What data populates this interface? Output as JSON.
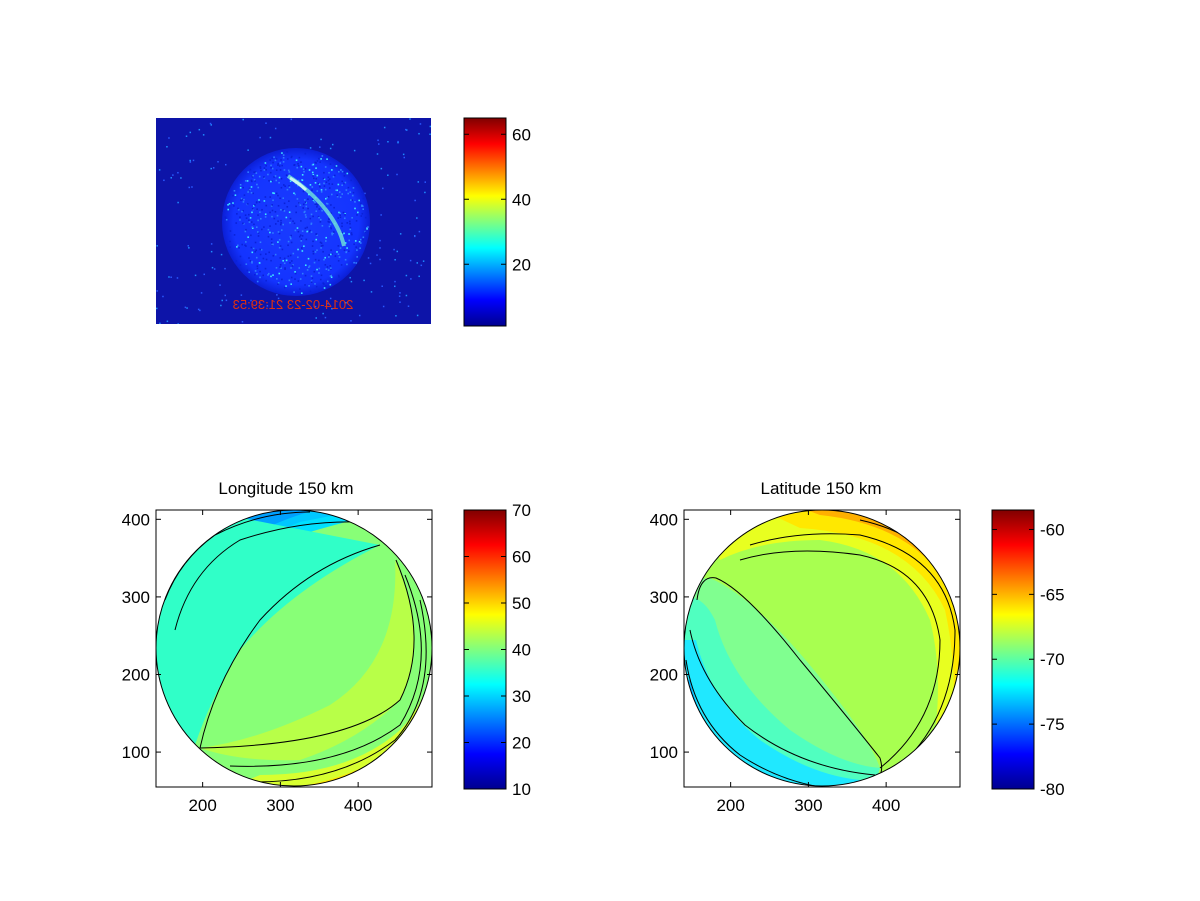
{
  "figure": {
    "background": "#ffffff"
  },
  "chart_data": [
    {
      "type": "heatmap",
      "title": "",
      "description_text": "2014-02-23 21:39:53 (printed mirrored inside image)",
      "image_text": "2014-02-23 21:39:53",
      "colorbar": {
        "ticks": [
          20,
          40,
          60
        ],
        "range": [
          1,
          65
        ]
      },
      "axes_visible": false
    },
    {
      "type": "heatmap",
      "title": "Longitude 150 km",
      "xlabel": "",
      "ylabel": "",
      "xticks": [
        200,
        300,
        400
      ],
      "yticks": [
        100,
        200,
        300,
        400
      ],
      "xlim": [
        140,
        495
      ],
      "ylim": [
        55,
        412
      ],
      "colorbar": {
        "ticks": [
          10,
          20,
          30,
          40,
          50,
          60,
          70
        ],
        "range": [
          10,
          70
        ]
      }
    },
    {
      "type": "heatmap",
      "title": "Latitude 150 km",
      "xlabel": "",
      "ylabel": "",
      "xticks": [
        200,
        300,
        400
      ],
      "yticks": [
        100,
        200,
        300,
        400
      ],
      "xlim": [
        140,
        495
      ],
      "ylim": [
        55,
        412
      ],
      "colorbar": {
        "ticks": [
          -80,
          -75,
          -70,
          -65,
          -60
        ],
        "range": [
          -80,
          -58.5
        ]
      }
    }
  ],
  "colors": {
    "jet_dark_blue": "#00008f",
    "jet_blue": "#0000ff",
    "jet_cyan": "#00ffff",
    "jet_yellow": "#ffff00",
    "jet_red": "#ff0000",
    "jet_dark_red": "#800000",
    "image_timestamp": "#e03010"
  }
}
